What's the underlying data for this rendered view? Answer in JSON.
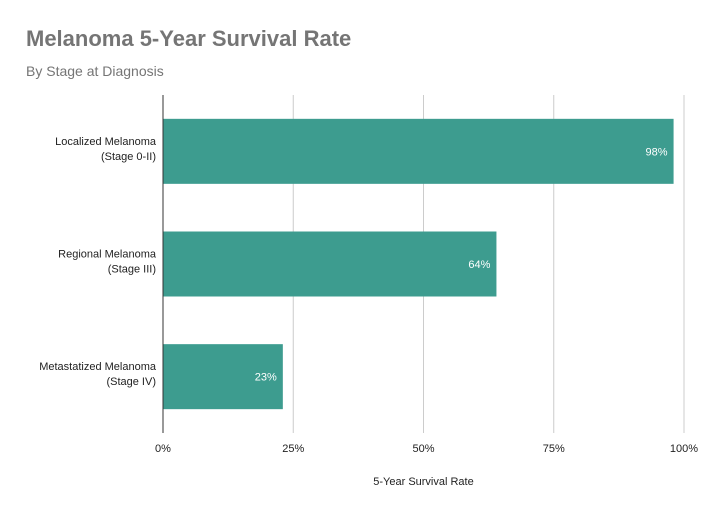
{
  "chart_data": {
    "type": "bar",
    "orientation": "horizontal",
    "title": "Melanoma 5-Year Survival Rate",
    "subtitle": "By Stage at Diagnosis",
    "xlabel": "5-Year Survival Rate",
    "ylabel": "",
    "categories": [
      [
        "Localized Melanoma",
        "(Stage 0-II)"
      ],
      [
        "Regional Melanoma",
        "(Stage III)"
      ],
      [
        "Metastatized Melanoma",
        "(Stage IV)"
      ]
    ],
    "values": [
      98,
      64,
      23
    ],
    "data_labels": [
      "98%",
      "64%",
      "23%"
    ],
    "xlim": [
      0,
      100
    ],
    "x_ticks": [
      0,
      25,
      50,
      75,
      100
    ],
    "x_tick_labels": [
      "0%",
      "25%",
      "50%",
      "75%",
      "100%"
    ],
    "grid": true,
    "legend": "none",
    "colors": {
      "bar": "#3d9c8f",
      "title": "#757575",
      "grid": "#cccccc"
    }
  }
}
